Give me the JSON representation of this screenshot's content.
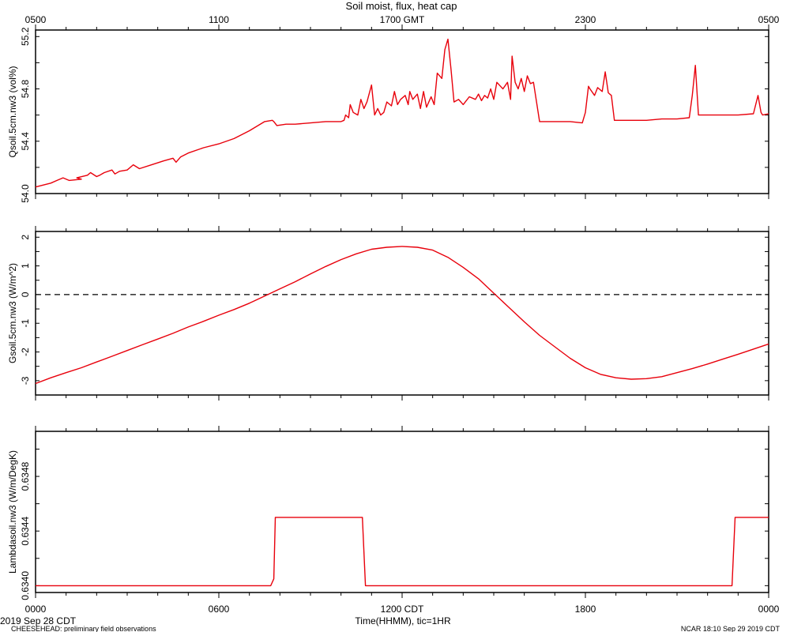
{
  "title": "Soil moist, flux, heat cap",
  "top_axis": {
    "ticks": [
      {
        "hour": 0,
        "label": "0500"
      },
      {
        "hour": 6,
        "label": "1100"
      },
      {
        "hour": 12,
        "label": "1700 GMT"
      },
      {
        "hour": 18,
        "label": "2300"
      },
      {
        "hour": 24,
        "label": "0500"
      }
    ]
  },
  "bottom_axis": {
    "ticks": [
      {
        "hour": 0,
        "label": "0000"
      },
      {
        "hour": 6,
        "label": "0600"
      },
      {
        "hour": 12,
        "label": "1200 CDT"
      },
      {
        "hour": 18,
        "label": "1800"
      },
      {
        "hour": 24,
        "label": "0000"
      }
    ],
    "xlabel": "Time(HHMM), tic=1HR"
  },
  "footer": {
    "date_left": "2019 Sep 28 CDT",
    "note_left": "CHEESEHEAD: preliminary field observations",
    "note_right": "NCAR 18:10 Sep 29 2019 CDT"
  },
  "colors": {
    "series": "#e8000b",
    "axes": "#000000",
    "zero_line": "#000000"
  },
  "chart_data": [
    {
      "type": "line",
      "ylabel": "Qsoil.5cm.nw3 (vol%)",
      "ylim": [
        54.0,
        55.25
      ],
      "yticks": [
        {
          "value": 54.0,
          "label": "54.0"
        },
        {
          "value": 54.4,
          "label": "54.4"
        },
        {
          "value": 54.8,
          "label": "54.8"
        },
        {
          "value": 55.2,
          "label": "55.2"
        }
      ],
      "xlim": [
        0,
        24
      ],
      "series": [
        {
          "x": [
            0,
            0.5,
            0.7,
            0.9,
            1.1,
            1.5,
            1.35,
            1.7,
            1.8,
            2.0,
            2.1,
            2.25,
            2.5,
            2.6,
            2.75,
            3.0,
            3.2,
            3.4,
            3.8,
            4.2,
            4.5,
            4.6,
            4.75,
            5.0,
            5.5,
            6.0,
            6.5,
            7.0,
            7.5,
            7.75,
            7.8,
            7.9,
            8.2,
            8.5,
            9.0,
            9.5,
            10.0,
            10.1,
            10.15,
            10.25,
            10.3,
            10.4,
            10.55,
            10.65,
            10.75,
            10.85,
            11.0,
            11.1,
            11.2,
            11.3,
            11.4,
            11.5,
            11.65,
            11.75,
            11.85,
            11.95,
            12.1,
            12.2,
            12.25,
            12.35,
            12.5,
            12.6,
            12.7,
            12.8,
            12.95,
            13.05,
            13.15,
            13.3,
            13.4,
            13.5,
            13.6,
            13.7,
            13.85,
            14.0,
            14.2,
            14.4,
            14.5,
            14.6,
            14.7,
            14.8,
            14.9,
            15.0,
            15.1,
            15.3,
            15.45,
            15.55,
            15.6,
            15.7,
            15.8,
            15.9,
            16.0,
            16.1,
            16.2,
            16.3,
            16.5,
            16.8,
            17.0,
            17.5,
            17.9,
            18.0,
            18.1,
            18.15,
            18.3,
            18.4,
            18.55,
            18.65,
            18.75,
            18.85,
            18.95,
            19.0,
            19.5,
            20.0,
            20.5,
            21.0,
            21.4,
            21.5,
            21.6,
            21.7,
            21.8,
            22.5,
            23.0,
            23.5,
            23.65,
            23.75,
            23.8,
            24.0
          ],
          "values": [
            54.05,
            54.08,
            54.1,
            54.12,
            54.1,
            54.11,
            54.12,
            54.14,
            54.16,
            54.13,
            54.14,
            54.16,
            54.18,
            54.15,
            54.17,
            54.18,
            54.22,
            54.19,
            54.22,
            54.25,
            54.27,
            54.24,
            54.28,
            54.31,
            54.35,
            54.38,
            54.42,
            54.48,
            54.55,
            54.56,
            54.55,
            54.52,
            54.53,
            54.53,
            54.54,
            54.55,
            54.55,
            54.56,
            54.6,
            54.58,
            54.68,
            54.62,
            54.6,
            54.72,
            54.65,
            54.7,
            54.83,
            54.6,
            54.65,
            54.6,
            54.62,
            54.7,
            54.67,
            54.78,
            54.68,
            54.72,
            54.75,
            54.68,
            54.78,
            54.72,
            54.76,
            54.65,
            54.78,
            54.66,
            54.74,
            54.68,
            54.92,
            54.88,
            55.1,
            55.18,
            54.95,
            54.7,
            54.72,
            54.68,
            54.74,
            54.72,
            54.76,
            54.71,
            54.75,
            54.73,
            54.8,
            54.72,
            54.85,
            54.8,
            54.85,
            54.72,
            55.05,
            54.85,
            54.8,
            54.88,
            54.78,
            54.9,
            54.84,
            54.85,
            54.55,
            54.55,
            54.55,
            54.55,
            54.54,
            54.62,
            54.82,
            54.8,
            54.75,
            54.81,
            54.78,
            54.93,
            54.77,
            54.75,
            54.56,
            54.56,
            54.56,
            54.56,
            54.57,
            54.57,
            54.58,
            54.75,
            54.98,
            54.6,
            54.6,
            54.6,
            54.6,
            54.61,
            54.75,
            54.62,
            54.6,
            54.61
          ],
          "color": "#e8000b"
        }
      ]
    },
    {
      "type": "line",
      "ylabel": "Gsoil.5cm.nw3 (W/m^2)",
      "ylim": [
        -3.5,
        2.2
      ],
      "yticks": [
        {
          "value": -3,
          "label": "-3"
        },
        {
          "value": -2,
          "label": "-2"
        },
        {
          "value": -1,
          "label": "-1"
        },
        {
          "value": 0,
          "label": "0"
        },
        {
          "value": 1,
          "label": "1"
        },
        {
          "value": 2,
          "label": "2"
        }
      ],
      "zero_line": true,
      "xlim": [
        0,
        24
      ],
      "series": [
        {
          "x": [
            0,
            0.5,
            1,
            1.5,
            2,
            2.5,
            3,
            3.5,
            4,
            4.5,
            5,
            5.5,
            6,
            6.5,
            7,
            7.5,
            8,
            8.5,
            9,
            9.5,
            10,
            10.5,
            11,
            11.5,
            12,
            12.5,
            13,
            13.5,
            14,
            14.5,
            15,
            15.5,
            16,
            16.5,
            17,
            17.5,
            18,
            18.5,
            19,
            19.5,
            20,
            20.5,
            21,
            21.5,
            22,
            22.5,
            23,
            23.5,
            24
          ],
          "values": [
            -3.1,
            -2.9,
            -2.72,
            -2.55,
            -2.35,
            -2.15,
            -1.95,
            -1.75,
            -1.55,
            -1.35,
            -1.13,
            -0.93,
            -0.72,
            -0.52,
            -0.3,
            -0.05,
            0.2,
            0.45,
            0.72,
            0.98,
            1.22,
            1.42,
            1.58,
            1.65,
            1.68,
            1.65,
            1.55,
            1.3,
            0.95,
            0.55,
            0.05,
            -0.45,
            -0.95,
            -1.42,
            -1.82,
            -2.22,
            -2.55,
            -2.78,
            -2.9,
            -2.95,
            -2.93,
            -2.86,
            -2.72,
            -2.58,
            -2.42,
            -2.25,
            -2.08,
            -1.9,
            -1.72
          ],
          "color": "#e8000b"
        }
      ]
    },
    {
      "type": "line",
      "ylabel": "Lambdasoil.nw3 (W/m/DegK)",
      "ylim": [
        0.63395,
        0.63513
      ],
      "yticks": [
        {
          "value": 0.634,
          "label": "0.6340"
        },
        {
          "value": 0.6344,
          "label": "0.6344"
        },
        {
          "value": 0.6348,
          "label": "0.6348"
        }
      ],
      "xlim": [
        0,
        24
      ],
      "series": [
        {
          "x": [
            0,
            7.7,
            7.8,
            7.85,
            10.7,
            10.8,
            22.8,
            22.9,
            24
          ],
          "values": [
            0.634,
            0.634,
            0.63405,
            0.6345,
            0.6345,
            0.634,
            0.634,
            0.6345,
            0.6345
          ],
          "color": "#e8000b"
        }
      ]
    }
  ]
}
